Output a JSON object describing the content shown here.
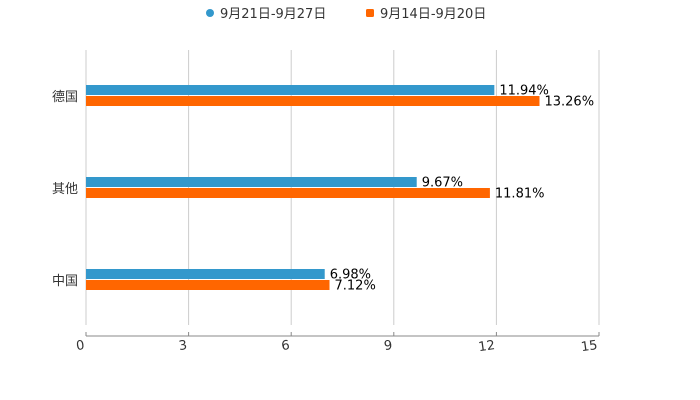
{
  "chart_data": {
    "type": "bar",
    "orientation": "horizontal",
    "categories": [
      "德国",
      "其他",
      "中国"
    ],
    "series": [
      {
        "name": "9月21日-9月27日",
        "values": [
          11.94,
          9.67,
          6.98
        ],
        "labels": [
          "11.94%",
          "9.67%",
          "6.98%"
        ],
        "color": "#3398cc",
        "marker": "circle"
      },
      {
        "name": "9月14日-9月20日",
        "values": [
          13.26,
          11.81,
          7.12
        ],
        "labels": [
          "13.26%",
          "11.81%",
          "7.12%"
        ],
        "color": "#ff6600",
        "marker": "square"
      }
    ],
    "xlim": [
      0,
      15
    ],
    "xticks": [
      "0",
      "3",
      "6",
      "9",
      "12",
      "15"
    ],
    "grid": true,
    "legend": "top-center"
  }
}
